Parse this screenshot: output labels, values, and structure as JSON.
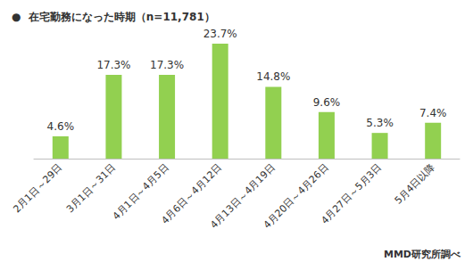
{
  "chart_data": {
    "type": "bar",
    "title": "●  在宅勤務になった時期（n=11,781）",
    "annotations": [
      "MMD研究所調べ"
    ],
    "categories": [
      "2月1日～29日",
      "3月1日～31日",
      "4月1日～4月5日",
      "4月6日～4月12日",
      "4月13日～4月19日",
      "4月20日～4月26日",
      "4月27日～5月3日",
      "5月4日以降"
    ],
    "values": [
      4.6,
      17.3,
      17.3,
      23.7,
      14.8,
      9.6,
      5.3,
      7.4
    ],
    "value_labels": [
      "4.6%",
      "17.3%",
      "17.3%",
      "23.7%",
      "14.8%",
      "9.6%",
      "5.3%",
      "7.4%"
    ],
    "color": "#92d050",
    "ylim": [
      0,
      25
    ],
    "grid": false,
    "data_labels": true,
    "tick_labels": "x"
  }
}
